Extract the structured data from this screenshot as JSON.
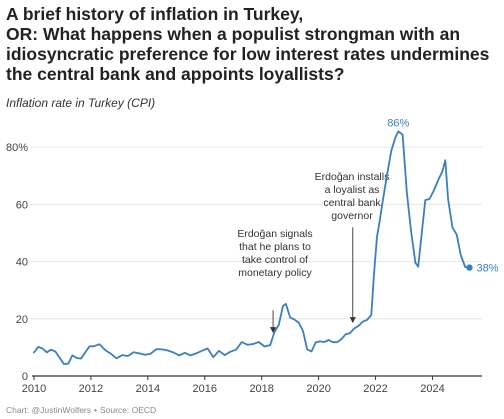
{
  "header": {
    "title_lines": [
      "A brief history of inflation in Turkey,",
      "OR: What happens when a populist strongman with an",
      "idiosyncratic preference for low interest rates undermines",
      "the central bank and appoints loyallists?"
    ],
    "subtitle": "Inflation rate in Turkey (CPI)"
  },
  "footer": {
    "credit": "Chart: @JustinWolfers",
    "separator": "•",
    "source": "Source: OECD"
  },
  "colors": {
    "line": "#3a7fc0",
    "grid": "#e6e6e6",
    "axis": "#333333",
    "annotation": "#333333",
    "text": "#222222"
  },
  "chart_data": {
    "type": "line",
    "title": "",
    "xlabel": "",
    "ylabel": "",
    "xlim": [
      2010,
      2025.6
    ],
    "ylim": [
      0,
      86
    ],
    "grid": true,
    "y_ticks": [
      0,
      20,
      40,
      60,
      80
    ],
    "y_tick_labels": [
      "0",
      "20",
      "40",
      "60",
      "80%"
    ],
    "x_ticks": [
      2010,
      2012,
      2014,
      2016,
      2018,
      2020,
      2022,
      2024
    ],
    "x_tick_labels": [
      "2010",
      "2012",
      "2014",
      "2016",
      "2018",
      "2020",
      "2022",
      "2024"
    ],
    "series": [
      {
        "x": [
          2010.0,
          2010.15,
          2010.3,
          2010.45,
          2010.6,
          2010.75,
          2010.9,
          2011.05,
          2011.2,
          2011.35,
          2011.5,
          2011.65,
          2011.8,
          2011.95,
          2012.1,
          2012.3,
          2012.5,
          2012.7,
          2012.9,
          2013.1,
          2013.3,
          2013.5,
          2013.7,
          2013.9,
          2014.1,
          2014.3,
          2014.5,
          2014.7,
          2014.9,
          2015.1,
          2015.3,
          2015.5,
          2015.7,
          2015.9,
          2016.1,
          2016.3,
          2016.5,
          2016.7,
          2016.9,
          2017.1,
          2017.3,
          2017.5,
          2017.7,
          2017.9,
          2018.1,
          2018.3,
          2018.45,
          2018.6,
          2018.75,
          2018.85,
          2019.0,
          2019.15,
          2019.3,
          2019.45,
          2019.6,
          2019.75,
          2019.9,
          2020.05,
          2020.2,
          2020.35,
          2020.5,
          2020.65,
          2020.8,
          2020.95,
          2021.1,
          2021.25,
          2021.4,
          2021.55,
          2021.7,
          2021.85,
          2021.95,
          2022.05,
          2022.15,
          2022.25,
          2022.4,
          2022.55,
          2022.7,
          2022.8,
          2022.95,
          2023.1,
          2023.25,
          2023.4,
          2023.5,
          2023.6,
          2023.75,
          2023.9,
          2024.05,
          2024.2,
          2024.35,
          2024.45,
          2024.55,
          2024.7,
          2024.85,
          2025.0,
          2025.15,
          2025.3
        ],
        "y": [
          8.2,
          10.2,
          9.6,
          8.3,
          9.2,
          8.6,
          6.4,
          4.2,
          4.3,
          7.2,
          6.3,
          6.1,
          8.2,
          10.4,
          10.4,
          11.1,
          9.1,
          7.8,
          6.2,
          7.3,
          7.0,
          8.3,
          7.9,
          7.4,
          7.8,
          9.4,
          9.3,
          8.9,
          8.2,
          7.2,
          8.1,
          7.2,
          7.9,
          8.8,
          9.6,
          6.6,
          8.8,
          7.3,
          8.5,
          9.2,
          11.9,
          10.9,
          11.2,
          11.9,
          10.3,
          10.8,
          15.4,
          17.9,
          24.5,
          25.2,
          20.4,
          19.7,
          18.7,
          15.7,
          9.3,
          8.6,
          11.8,
          12.1,
          11.9,
          12.6,
          11.8,
          11.8,
          12.9,
          14.6,
          15.0,
          16.6,
          17.5,
          19.0,
          19.6,
          21.3,
          36.1,
          48.7,
          54.4,
          61.1,
          70.0,
          78.6,
          83.5,
          85.5,
          84.4,
          64.3,
          50.5,
          39.6,
          38.2,
          47.8,
          61.5,
          61.9,
          64.9,
          68.5,
          71.6,
          75.4,
          61.8,
          52.0,
          49.4,
          42.1,
          38.1,
          37.9
        ]
      }
    ],
    "data_labels": [
      {
        "text": "86%",
        "x": 2022.8,
        "y": 85.5
      },
      {
        "text": "38%",
        "x": 2025.3,
        "y": 37.9
      }
    ],
    "annotations": [
      {
        "lines": [
          "Erdoğan signals",
          "that he plans to",
          "take control of",
          "monetary policy"
        ],
        "arrow_x": 2018.4,
        "arrow_y_from": 23,
        "arrow_y_to": 15
      },
      {
        "lines": [
          "Erdoğan installs",
          "a loyalist as",
          "central bank",
          "governor"
        ],
        "arrow_x": 2021.2,
        "arrow_y_from": 52,
        "arrow_y_to": 18.5
      }
    ]
  }
}
